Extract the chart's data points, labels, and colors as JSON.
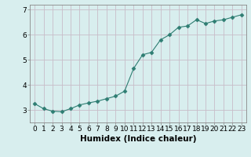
{
  "x": [
    0,
    1,
    2,
    3,
    4,
    5,
    6,
    7,
    8,
    9,
    10,
    11,
    12,
    13,
    14,
    15,
    16,
    17,
    18,
    19,
    20,
    21,
    22,
    23
  ],
  "y": [
    3.25,
    3.05,
    2.95,
    2.93,
    3.05,
    3.2,
    3.28,
    3.35,
    3.45,
    3.55,
    3.75,
    4.65,
    5.2,
    5.3,
    5.8,
    6.0,
    6.3,
    6.35,
    6.6,
    6.45,
    6.55,
    6.6,
    6.7,
    6.8
  ],
  "line_color": "#2e7d72",
  "marker": "D",
  "marker_size": 2.5,
  "bg_color": "#d8eeee",
  "grid_color": "#c8bcc8",
  "xlabel": "Humidex (Indice chaleur)",
  "xlim": [
    -0.5,
    23.5
  ],
  "ylim": [
    2.5,
    7.2
  ],
  "yticks": [
    3,
    4,
    5,
    6,
    7
  ],
  "xtick_labels": [
    "0",
    "1",
    "2",
    "3",
    "4",
    "5",
    "6",
    "7",
    "8",
    "9",
    "10",
    "11",
    "12",
    "13",
    "14",
    "15",
    "16",
    "17",
    "18",
    "19",
    "20",
    "21",
    "22",
    "23"
  ],
  "xlabel_fontsize": 7.5,
  "tick_fontsize": 6.5
}
